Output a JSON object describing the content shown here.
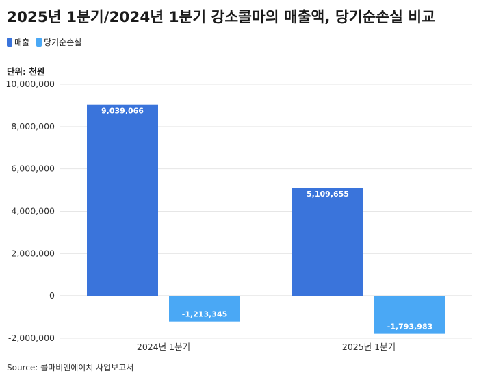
{
  "title": "2025년 1분기/2024년 1분기 강소콜마의 매출액, 당기순손실 비교",
  "unit_label": "단위: 천원",
  "source": "Source: 콜마비앤에이치 사업보고서",
  "colors": {
    "revenue": "#3a74db",
    "net_loss": "#4aa8f5"
  },
  "chart_data": {
    "type": "bar",
    "categories": [
      "2024년 1분기",
      "2025년 1분기"
    ],
    "series": [
      {
        "name": "매출",
        "values": [
          9039066,
          5109655
        ],
        "labels": [
          "9,039,066",
          "5,109,655"
        ]
      },
      {
        "name": "당기순손실",
        "values": [
          -1213345,
          -1793983
        ],
        "labels": [
          "-1,213,345",
          "-1,793,983"
        ]
      }
    ],
    "ylim": [
      -2000000,
      10000000
    ],
    "yticks": [
      {
        "value": 10000000,
        "label": "10,000,000"
      },
      {
        "value": 8000000,
        "label": "8,000,000"
      },
      {
        "value": 6000000,
        "label": "6,000,000"
      },
      {
        "value": 4000000,
        "label": "4,000,000"
      },
      {
        "value": 2000000,
        "label": "2,000,000"
      },
      {
        "value": 0,
        "label": "0"
      },
      {
        "value": -2000000,
        "label": "-2,000,000"
      }
    ],
    "grid": true,
    "legend_position": "top-left"
  }
}
